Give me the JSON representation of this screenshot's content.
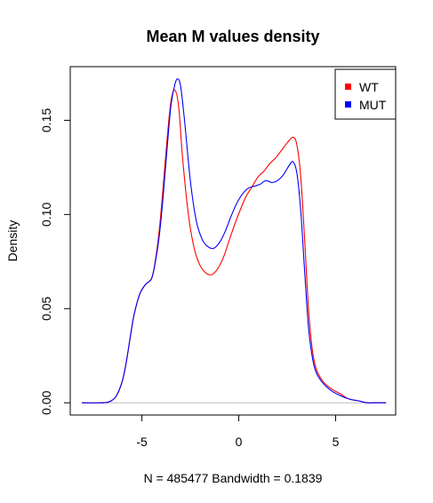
{
  "chart_data": {
    "type": "line",
    "title": "Mean M values density",
    "xlabel": "N = 485477   Bandwidth = 0.1839",
    "ylabel": "Density",
    "xlim": [
      -8.7,
      8.1
    ],
    "ylim": [
      -0.0065,
      0.1785
    ],
    "x_ticks": [
      -5,
      0,
      5
    ],
    "x_tick_labels": [
      "-5",
      "0",
      "5"
    ],
    "y_ticks": [
      0.0,
      0.05,
      0.1,
      0.15
    ],
    "y_tick_labels": [
      "0.00",
      "0.05",
      "0.10",
      "0.15"
    ],
    "baseline": 0,
    "baseline_color": "#bebebe",
    "grid": false,
    "legend_position": "top-right",
    "series": [
      {
        "name": "WT",
        "color": "#ff0000",
        "x": [
          -8.1,
          -7.0,
          -6.6,
          -6.3,
          -6.0,
          -5.8,
          -5.6,
          -5.4,
          -5.1,
          -4.8,
          -4.5,
          -4.3,
          -4.1,
          -3.9,
          -3.7,
          -3.5,
          -3.3,
          -3.1,
          -2.9,
          -2.6,
          -2.3,
          -2.0,
          -1.7,
          -1.4,
          -1.1,
          -0.8,
          -0.5,
          -0.2,
          0.1,
          0.4,
          0.7,
          1.0,
          1.3,
          1.6,
          1.9,
          2.2,
          2.5,
          2.8,
          3.0,
          3.2,
          3.4,
          3.6,
          3.8,
          4.0,
          4.3,
          4.7,
          5.2,
          5.7,
          6.2,
          6.6,
          7.0,
          7.6
        ],
        "y": [
          0.0,
          0.0,
          0.001,
          0.004,
          0.012,
          0.022,
          0.035,
          0.047,
          0.058,
          0.063,
          0.066,
          0.076,
          0.092,
          0.115,
          0.14,
          0.16,
          0.166,
          0.157,
          0.13,
          0.1,
          0.082,
          0.073,
          0.069,
          0.068,
          0.071,
          0.077,
          0.086,
          0.095,
          0.103,
          0.11,
          0.115,
          0.12,
          0.123,
          0.127,
          0.13,
          0.134,
          0.138,
          0.141,
          0.137,
          0.12,
          0.087,
          0.05,
          0.028,
          0.018,
          0.012,
          0.008,
          0.005,
          0.002,
          0.001,
          0.0,
          0.0,
          0.0
        ]
      },
      {
        "name": "MUT",
        "color": "#0000ff",
        "x": [
          -8.1,
          -7.0,
          -6.6,
          -6.3,
          -6.0,
          -5.8,
          -5.6,
          -5.4,
          -5.1,
          -4.8,
          -4.5,
          -4.3,
          -4.1,
          -3.9,
          -3.7,
          -3.5,
          -3.3,
          -3.15,
          -3.0,
          -2.8,
          -2.5,
          -2.2,
          -1.9,
          -1.6,
          -1.3,
          -1.0,
          -0.7,
          -0.4,
          -0.1,
          0.2,
          0.5,
          0.8,
          1.1,
          1.4,
          1.7,
          2.0,
          2.3,
          2.6,
          2.8,
          3.0,
          3.2,
          3.4,
          3.6,
          3.8,
          4.0,
          4.3,
          4.7,
          5.2,
          5.7,
          6.2,
          6.6,
          7.0,
          7.6
        ],
        "y": [
          0.0,
          0.0,
          0.001,
          0.004,
          0.012,
          0.022,
          0.035,
          0.047,
          0.058,
          0.063,
          0.066,
          0.075,
          0.089,
          0.11,
          0.135,
          0.158,
          0.169,
          0.172,
          0.168,
          0.15,
          0.118,
          0.097,
          0.087,
          0.083,
          0.082,
          0.085,
          0.091,
          0.099,
          0.106,
          0.111,
          0.114,
          0.115,
          0.116,
          0.118,
          0.117,
          0.118,
          0.121,
          0.126,
          0.128,
          0.122,
          0.102,
          0.07,
          0.04,
          0.024,
          0.016,
          0.011,
          0.007,
          0.004,
          0.002,
          0.001,
          0.0,
          0.0,
          0.0
        ]
      }
    ]
  }
}
